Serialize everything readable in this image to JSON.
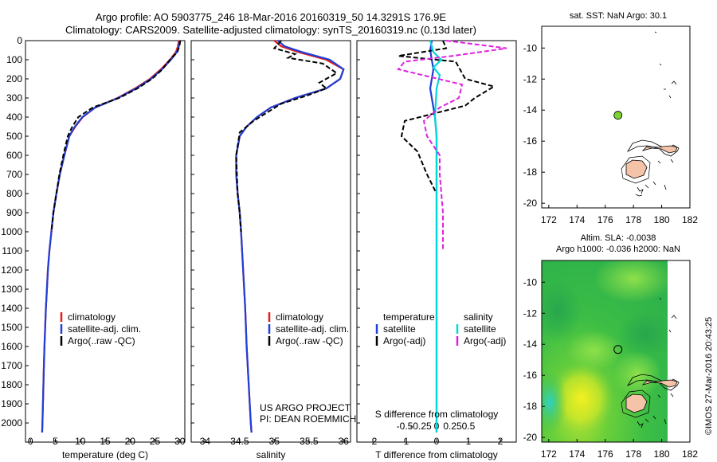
{
  "title_line1": "Argo profile: AO 5903775_246 18-Mar-2016 20160319_50 14.3291S 176.9E",
  "title_line2": "Climatology: CARS2009. Satellite-adjusted climatology: synTS_20160319.nc (0.13d later)",
  "side_stamp": "©IMOS 27-Mar-2016 20:43:25",
  "colors": {
    "climatology": "#e41a1c",
    "satellite": "#1f3fd6",
    "argo": "#000000",
    "sal_satellite": "#00d8d8",
    "sal_argo": "#e020e0",
    "float_marker": "#7cd42a"
  },
  "chart_data": [
    {
      "type": "line",
      "xlabel": "temperature (deg C)",
      "xlim": [
        -1,
        31
      ],
      "xticks": [
        "0",
        "5",
        "10",
        "15",
        "20",
        "25",
        "30"
      ],
      "ylim": [
        2100,
        0
      ],
      "yticks": [
        "0",
        "100",
        "200",
        "300",
        "400",
        "500",
        "600",
        "700",
        "800",
        "900",
        "1000",
        "1100",
        "1200",
        "1300",
        "1400",
        "1500",
        "1600",
        "1700",
        "1800",
        "1900",
        "2000"
      ],
      "legend": [
        "climatology",
        "satellite-adj. clim.",
        "Argo(..raw -QC)"
      ],
      "series": [
        {
          "name": "climatology",
          "style": "solid",
          "color": "climatology",
          "points": [
            [
              29.8,
              0
            ],
            [
              29.6,
              30
            ],
            [
              29.2,
              60
            ],
            [
              28.0,
              100
            ],
            [
              26.2,
              150
            ],
            [
              24.0,
              200
            ],
            [
              21.0,
              250
            ],
            [
              17.5,
              300
            ],
            [
              13.0,
              350
            ],
            [
              10.5,
              400
            ],
            [
              9.0,
              450
            ],
            [
              7.8,
              500
            ],
            [
              6.8,
              600
            ],
            [
              5.9,
              700
            ],
            [
              5.2,
              800
            ],
            [
              4.6,
              900
            ],
            [
              4.2,
              1000
            ],
            [
              3.8,
              1100
            ],
            [
              3.5,
              1200
            ],
            [
              3.3,
              1300
            ],
            [
              3.1,
              1400
            ],
            [
              2.95,
              1500
            ],
            [
              2.8,
              1600
            ],
            [
              2.7,
              1700
            ],
            [
              2.6,
              1800
            ],
            [
              2.5,
              1900
            ],
            [
              2.4,
              2000
            ],
            [
              2.35,
              2050
            ]
          ]
        },
        {
          "name": "satellite-adj. clim.",
          "style": "solid",
          "color": "satellite",
          "points": [
            [
              30.0,
              0
            ],
            [
              29.8,
              30
            ],
            [
              29.4,
              60
            ],
            [
              28.2,
              100
            ],
            [
              26.4,
              150
            ],
            [
              24.2,
              200
            ],
            [
              21.2,
              250
            ],
            [
              17.6,
              300
            ],
            [
              13.0,
              350
            ],
            [
              10.4,
              400
            ],
            [
              8.9,
              450
            ],
            [
              7.8,
              500
            ],
            [
              6.8,
              600
            ],
            [
              5.9,
              700
            ],
            [
              5.2,
              800
            ],
            [
              4.6,
              900
            ],
            [
              4.2,
              1000
            ],
            [
              3.8,
              1100
            ],
            [
              3.5,
              1200
            ],
            [
              3.3,
              1300
            ],
            [
              3.1,
              1400
            ],
            [
              2.95,
              1500
            ],
            [
              2.8,
              1600
            ],
            [
              2.7,
              1700
            ],
            [
              2.6,
              1800
            ],
            [
              2.5,
              1900
            ],
            [
              2.4,
              2000
            ],
            [
              2.35,
              2050
            ]
          ]
        },
        {
          "name": "Argo(..raw -QC)",
          "style": "dashed",
          "color": "argo",
          "points": [
            [
              30.1,
              0
            ],
            [
              29.9,
              30
            ],
            [
              29.5,
              60
            ],
            [
              28.0,
              100
            ],
            [
              26.5,
              150
            ],
            [
              24.4,
              200
            ],
            [
              21.5,
              250
            ],
            [
              17.8,
              300
            ],
            [
              12.5,
              350
            ],
            [
              9.6,
              400
            ],
            [
              8.4,
              450
            ],
            [
              7.5,
              500
            ],
            [
              6.6,
              600
            ],
            [
              5.8,
              700
            ],
            [
              5.2,
              800
            ],
            [
              4.6,
              900
            ],
            [
              4.2,
              1000
            ]
          ]
        }
      ]
    },
    {
      "type": "line",
      "xlabel": "salinity",
      "xlim": [
        33.8,
        36.1
      ],
      "xticks": [
        "34",
        "34.5",
        "35",
        "35.5",
        "36"
      ],
      "ylim": [
        2100,
        0
      ],
      "legend": [
        "climatology",
        "satellite-adj. clim.",
        "Argo(..raw -QC)"
      ],
      "annotations": [
        "US ARGO PROJECT",
        "PI: DEAN ROEMMICH"
      ],
      "series": [
        {
          "name": "climatology",
          "style": "solid",
          "color": "climatology",
          "points": [
            [
              35.0,
              0
            ],
            [
              35.1,
              30
            ],
            [
              35.35,
              60
            ],
            [
              35.75,
              100
            ],
            [
              36.0,
              150
            ],
            [
              35.95,
              200
            ],
            [
              35.75,
              250
            ],
            [
              35.3,
              300
            ],
            [
              34.95,
              350
            ],
            [
              34.75,
              400
            ],
            [
              34.6,
              450
            ],
            [
              34.5,
              500
            ],
            [
              34.45,
              600
            ],
            [
              34.45,
              700
            ],
            [
              34.47,
              800
            ],
            [
              34.5,
              900
            ],
            [
              34.52,
              1000
            ],
            [
              34.55,
              1200
            ],
            [
              34.58,
              1400
            ],
            [
              34.6,
              1600
            ],
            [
              34.63,
              1800
            ],
            [
              34.66,
              2000
            ],
            [
              34.67,
              2050
            ]
          ]
        },
        {
          "name": "satellite-adj. clim.",
          "style": "solid",
          "color": "satellite",
          "points": [
            [
              35.05,
              0
            ],
            [
              35.15,
              30
            ],
            [
              35.4,
              60
            ],
            [
              35.8,
              100
            ],
            [
              36.0,
              150
            ],
            [
              35.95,
              200
            ],
            [
              35.75,
              250
            ],
            [
              35.3,
              300
            ],
            [
              34.95,
              350
            ],
            [
              34.75,
              400
            ],
            [
              34.6,
              450
            ],
            [
              34.5,
              500
            ],
            [
              34.45,
              600
            ],
            [
              34.45,
              700
            ],
            [
              34.47,
              800
            ],
            [
              34.5,
              900
            ],
            [
              34.52,
              1000
            ],
            [
              34.55,
              1200
            ],
            [
              34.58,
              1400
            ],
            [
              34.6,
              1600
            ],
            [
              34.63,
              1800
            ],
            [
              34.66,
              2000
            ],
            [
              34.67,
              2050
            ]
          ]
        },
        {
          "name": "Argo(..raw -QC)",
          "style": "dashed",
          "color": "argo",
          "points": [
            [
              35.1,
              0
            ],
            [
              35.0,
              40
            ],
            [
              35.3,
              70
            ],
            [
              35.2,
              90
            ],
            [
              35.7,
              120
            ],
            [
              35.9,
              170
            ],
            [
              35.65,
              220
            ],
            [
              35.75,
              250
            ],
            [
              35.45,
              290
            ],
            [
              35.1,
              330
            ],
            [
              34.7,
              420
            ],
            [
              34.5,
              480
            ],
            [
              34.45,
              600
            ],
            [
              34.47,
              800
            ],
            [
              34.5,
              900
            ],
            [
              34.52,
              1000
            ]
          ]
        }
      ]
    },
    {
      "type": "line",
      "xlabel_top": "S difference from climatology",
      "xlabel": "T difference from climatology",
      "xlim": [
        -2.5,
        2.5
      ],
      "xticks": [
        "-2",
        "-1",
        "0",
        "1",
        "2"
      ],
      "xticks_top": [
        "-0.5",
        "-0.25",
        "0",
        "0.25",
        "0.5"
      ],
      "ylim": [
        2100,
        0
      ],
      "legend_titles": [
        "temperature",
        "salinity"
      ],
      "legend": [
        "satellite",
        "Argo(-adj)",
        "satellite",
        "Argo(-adj)"
      ],
      "series": [
        {
          "name": "satellite",
          "group": "temperature",
          "style": "solid",
          "color": "satellite",
          "points": [
            [
              -0.15,
              0
            ],
            [
              -0.2,
              50
            ],
            [
              -0.15,
              100
            ],
            [
              -0.1,
              150
            ],
            [
              -0.2,
              250
            ],
            [
              -0.05,
              400
            ],
            [
              0.0,
              500
            ],
            [
              0.0,
              1000
            ],
            [
              0.0,
              2050
            ]
          ]
        },
        {
          "name": "Argo(-adj)",
          "group": "temperature",
          "style": "dashed",
          "color": "argo",
          "points": [
            [
              0.2,
              0
            ],
            [
              0.3,
              40
            ],
            [
              -1.2,
              80
            ],
            [
              0.6,
              110
            ],
            [
              0.9,
              200
            ],
            [
              1.8,
              240
            ],
            [
              1.2,
              300
            ],
            [
              0.9,
              340
            ],
            [
              -1.0,
              420
            ],
            [
              -1.1,
              500
            ],
            [
              -0.6,
              580
            ],
            [
              -0.3,
              700
            ],
            [
              0.0,
              800
            ],
            [
              0.0,
              1000
            ]
          ]
        },
        {
          "name": "satellite",
          "group": "salinity",
          "style": "solid",
          "color": "sal_satellite",
          "points": [
            [
              -0.2,
              0
            ],
            [
              -0.1,
              60
            ],
            [
              0.15,
              100
            ],
            [
              -0.1,
              140
            ],
            [
              0.1,
              180
            ],
            [
              0.0,
              250
            ],
            [
              -0.05,
              400
            ],
            [
              0.0,
              500
            ],
            [
              0.0,
              1000
            ],
            [
              0.0,
              2050
            ]
          ]
        },
        {
          "name": "Argo(-adj)",
          "group": "salinity",
          "style": "dashed",
          "color": "sal_argo",
          "points": [
            [
              0.3,
              0
            ],
            [
              2.2,
              40
            ],
            [
              0.5,
              80
            ],
            [
              -1.0,
              110
            ],
            [
              -1.2,
              150
            ],
            [
              0.8,
              230
            ],
            [
              0.7,
              300
            ],
            [
              0.1,
              350
            ],
            [
              -0.4,
              420
            ],
            [
              -0.3,
              500
            ],
            [
              0.1,
              600
            ],
            [
              0.1,
              700
            ],
            [
              0.2,
              900
            ],
            [
              0.2,
              1100
            ]
          ]
        }
      ]
    },
    {
      "type": "scatter",
      "title": "sat. SST: NaN Argo: 30.1",
      "xlim": [
        171.5,
        182
      ],
      "ylim": [
        -20.3,
        -8.6
      ],
      "xticks": [
        "172",
        "174",
        "176",
        "178",
        "180",
        "182"
      ],
      "yticks": [
        "-10",
        "-12",
        "-14",
        "-16",
        "-18",
        "-20"
      ],
      "points": [
        {
          "x": 176.9,
          "y": -14.33
        }
      ]
    },
    {
      "type": "heatmap",
      "title_line1": "Altim. SLA: -0.0038",
      "title_line2": "Argo h1000: -0.036 h2000: NaN",
      "xlim": [
        171.5,
        182
      ],
      "ylim": [
        -20.3,
        -8.6
      ],
      "xticks": [
        "172",
        "174",
        "176",
        "178",
        "180",
        "182"
      ],
      "yticks": [
        "-10",
        "-12",
        "-14",
        "-16",
        "-18",
        "-20"
      ],
      "data_extent": [
        171.5,
        180.0,
        -20.3,
        -8.6
      ],
      "points": [
        {
          "x": 176.9,
          "y": -14.33
        }
      ]
    }
  ]
}
